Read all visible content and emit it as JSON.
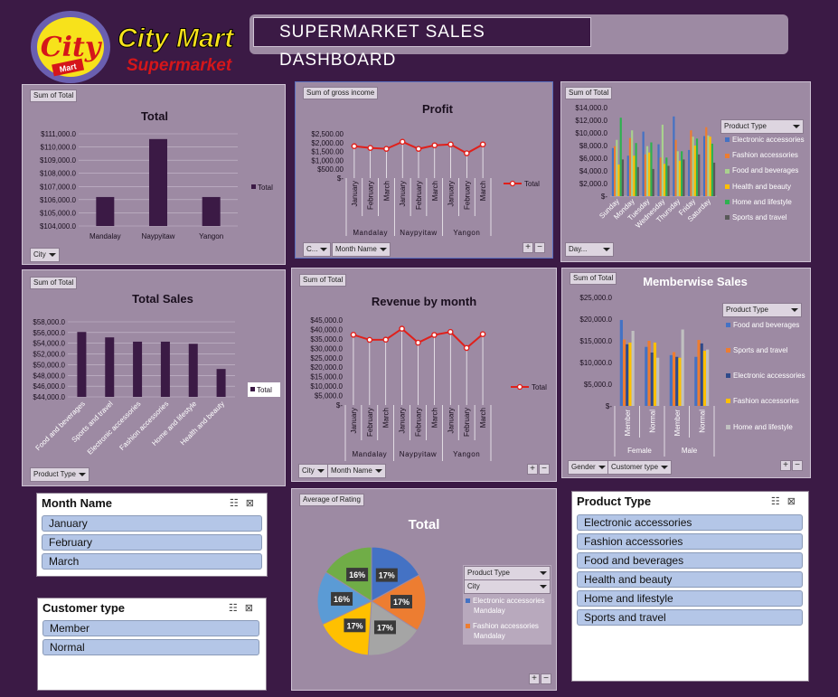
{
  "header": {
    "title": "SUPERMARKET  SALES  DASHBOARD",
    "logo_text": "City Mart",
    "logo_circle_text": "City",
    "logo_circle_small": "Mart",
    "logo_sub": "Supermarket"
  },
  "colors": {
    "background": "#3b1a45",
    "panel": "#9d8aa3",
    "bar": "#3b1a45",
    "line": "#e0201b",
    "logo_yellow": "#f7e21b",
    "logo_red": "#d5161a",
    "logo_blue": "#6a5fb0"
  },
  "panels": {
    "p1": {
      "tag": "Sum of Total",
      "dropdowns": [
        "City"
      ]
    },
    "p2": {
      "tag": "Sum of gross income",
      "dropdowns": [
        "C...",
        "Month Name"
      ]
    },
    "p3": {
      "tag": "Sum of Total",
      "dropdowns": [
        "Day..."
      ],
      "legend_dd": "Product Type"
    },
    "p4": {
      "tag": "Sum of Total",
      "dropdowns": [
        "Product Type"
      ]
    },
    "p5": {
      "tag": "Sum of Total",
      "dropdowns": [
        "City",
        "Month Name"
      ]
    },
    "p6": {
      "tag": "Sum of Total",
      "dropdowns": [
        "Gender",
        "Customer type"
      ],
      "legend_dd": "Product Type"
    },
    "p7": {
      "tag": "Average of Rating",
      "legend_dd": "Product Type",
      "legend_sub": "City"
    }
  },
  "chart_data": [
    {
      "id": "city_total",
      "type": "bar",
      "title": "Total",
      "categories": [
        "Mandalay",
        "Naypyitaw",
        "Yangon"
      ],
      "values": [
        106200,
        110600,
        106200
      ],
      "ylim": [
        104000,
        111000
      ],
      "yticks": [
        "$104,000.0",
        "$105,000.0",
        "$106,000.0",
        "$107,000.0",
        "$108,000.0",
        "$109,000.0",
        "$110,000.0",
        "$111,000.0"
      ],
      "legend": [
        "Total"
      ],
      "grid": true
    },
    {
      "id": "profit",
      "type": "line",
      "title": "Profit",
      "groups": [
        "Mandalay",
        "Naypyitaw",
        "Yangon"
      ],
      "months": [
        "January",
        "February",
        "March"
      ],
      "values": [
        1800,
        1700,
        1650,
        2050,
        1650,
        1850,
        1900,
        1400,
        1900
      ],
      "ylim": [
        0,
        2500
      ],
      "yticks": [
        "$-",
        "$500.00",
        "$1,000.00",
        "$1,500.00",
        "$2,000.00",
        "$2,500.00"
      ],
      "legend": [
        "Total"
      ]
    },
    {
      "id": "daywise",
      "type": "bar",
      "categories": [
        "Sunday",
        "Monday",
        "Tuesday",
        "Wednesday",
        "Thursday",
        "Friday",
        "Saturday"
      ],
      "series": [
        {
          "name": "Electronic accessories",
          "color": "#4472c4",
          "values": [
            7600,
            6400,
            10200,
            8200,
            12600,
            7300,
            9500
          ]
        },
        {
          "name": "Fashion accessories",
          "color": "#ed7d31",
          "values": [
            7900,
            9200,
            6600,
            6100,
            8900,
            10400,
            10900
          ]
        },
        {
          "name": "Food and beverages",
          "color": "#a9d18e",
          "values": [
            8900,
            10400,
            7900,
            11300,
            7100,
            9400,
            9600
          ]
        },
        {
          "name": "Health and beauty",
          "color": "#ffc000",
          "values": [
            5000,
            6400,
            6900,
            5100,
            5600,
            8000,
            9400
          ]
        },
        {
          "name": "Home and lifestyle",
          "color": "#2fb14f",
          "values": [
            12400,
            8400,
            8500,
            6100,
            7100,
            9100,
            8300
          ]
        },
        {
          "name": "Sports and travel",
          "color": "#595959",
          "values": [
            5800,
            4600,
            4300,
            4800,
            5800,
            6600,
            5300
          ]
        }
      ],
      "ylim": [
        0,
        14000
      ],
      "yticks": [
        "$-",
        "$2,000.0",
        "$4,000.0",
        "$6,000.0",
        "$8,000.0",
        "$10,000.0",
        "$12,000.0",
        "$14,000.0"
      ]
    },
    {
      "id": "product_total",
      "type": "bar",
      "title": "Total Sales",
      "categories": [
        "Food and beverages",
        "Sports and travel",
        "Electronic accessories",
        "Fashion accessories",
        "Home and lifestyle",
        "Health and beauty"
      ],
      "values": [
        56100,
        55100,
        54300,
        54300,
        53900,
        49200
      ],
      "ylim": [
        44000,
        58000
      ],
      "yticks": [
        "$44,000.0",
        "$46,000.0",
        "$48,000.0",
        "$50,000.0",
        "$52,000.0",
        "$54,000.0",
        "$56,000.0",
        "$58,000.0"
      ],
      "legend": [
        "Total"
      ],
      "grid": true
    },
    {
      "id": "revenue_month",
      "type": "line",
      "title": "Revenue by month",
      "groups": [
        "Mandalay",
        "Naypyitaw",
        "Yangon"
      ],
      "months": [
        "January",
        "February",
        "March"
      ],
      "values": [
        37200,
        34500,
        34600,
        40400,
        33000,
        37100,
        38700,
        30200,
        37500
      ],
      "ylim": [
        0,
        45000
      ],
      "yticks": [
        "$-",
        "$5,000.0",
        "$10,000.0",
        "$15,000.0",
        "$20,000.0",
        "$25,000.0",
        "$30,000.0",
        "$35,000.0",
        "$40,000.0",
        "$45,000.0"
      ],
      "legend": [
        "Total"
      ]
    },
    {
      "id": "memberwise",
      "type": "bar",
      "title": "Memberwise Sales",
      "groups": [
        "Female",
        "Male"
      ],
      "categories": [
        "Member",
        "Normal",
        "Member",
        "Normal"
      ],
      "series": [
        {
          "name": "Food and beverages",
          "color": "#4472c4",
          "values": [
            19800,
            13600,
            11700,
            11300
          ]
        },
        {
          "name": "Sports and travel",
          "color": "#ed7d31",
          "values": [
            15300,
            15000,
            12400,
            15200
          ]
        },
        {
          "name": "Electronic accessories",
          "color": "#2f4a8a",
          "values": [
            14200,
            12300,
            11300,
            14400
          ]
        },
        {
          "name": "Fashion accessories",
          "color": "#ffc000",
          "values": [
            14600,
            14600,
            11100,
            12700
          ]
        },
        {
          "name": "Home and lifestyle",
          "color": "#c0c0c0",
          "values": [
            17300,
            11100,
            17600,
            13000
          ]
        }
      ],
      "ylim": [
        0,
        25000
      ],
      "yticks": [
        "$-",
        "$5,000.0",
        "$10,000.0",
        "$15,000.0",
        "$20,000.0",
        "$25,000.0"
      ],
      "legend_labels": [
        "Food and beverages",
        "Sports and travel",
        "Electronic accessories",
        "Fashion accessories",
        "Home and lifestyle"
      ]
    },
    {
      "id": "rating",
      "type": "pie",
      "title": "Total",
      "labels": [
        "17%",
        "17%",
        "17%",
        "17%",
        "16%",
        "16%"
      ],
      "values": [
        17,
        17,
        17,
        17,
        16,
        16
      ],
      "colors": [
        "#4472c4",
        "#ed7d31",
        "#a5a5a5",
        "#ffc000",
        "#5b9bd5",
        "#70ad47"
      ],
      "legend": [
        {
          "line1": "Electronic accessories",
          "line2": "Mandalay",
          "color": "#4472c4"
        },
        {
          "line1": "Fashion accessories",
          "line2": "Mandalay",
          "color": "#ed7d31"
        }
      ]
    }
  ],
  "slicers": {
    "month": {
      "title": "Month Name",
      "items": [
        "January",
        "February",
        "March"
      ]
    },
    "customer": {
      "title": "Customer type",
      "items": [
        "Member",
        "Normal"
      ]
    },
    "product": {
      "title": "Product Type",
      "items": [
        "Electronic accessories",
        "Fashion accessories",
        "Food and beverages",
        "Health and beauty",
        "Home and lifestyle",
        "Sports and travel"
      ]
    }
  },
  "icons": {
    "multi_select": "multi-select-icon",
    "clear_filter": "clear-filter-icon"
  }
}
